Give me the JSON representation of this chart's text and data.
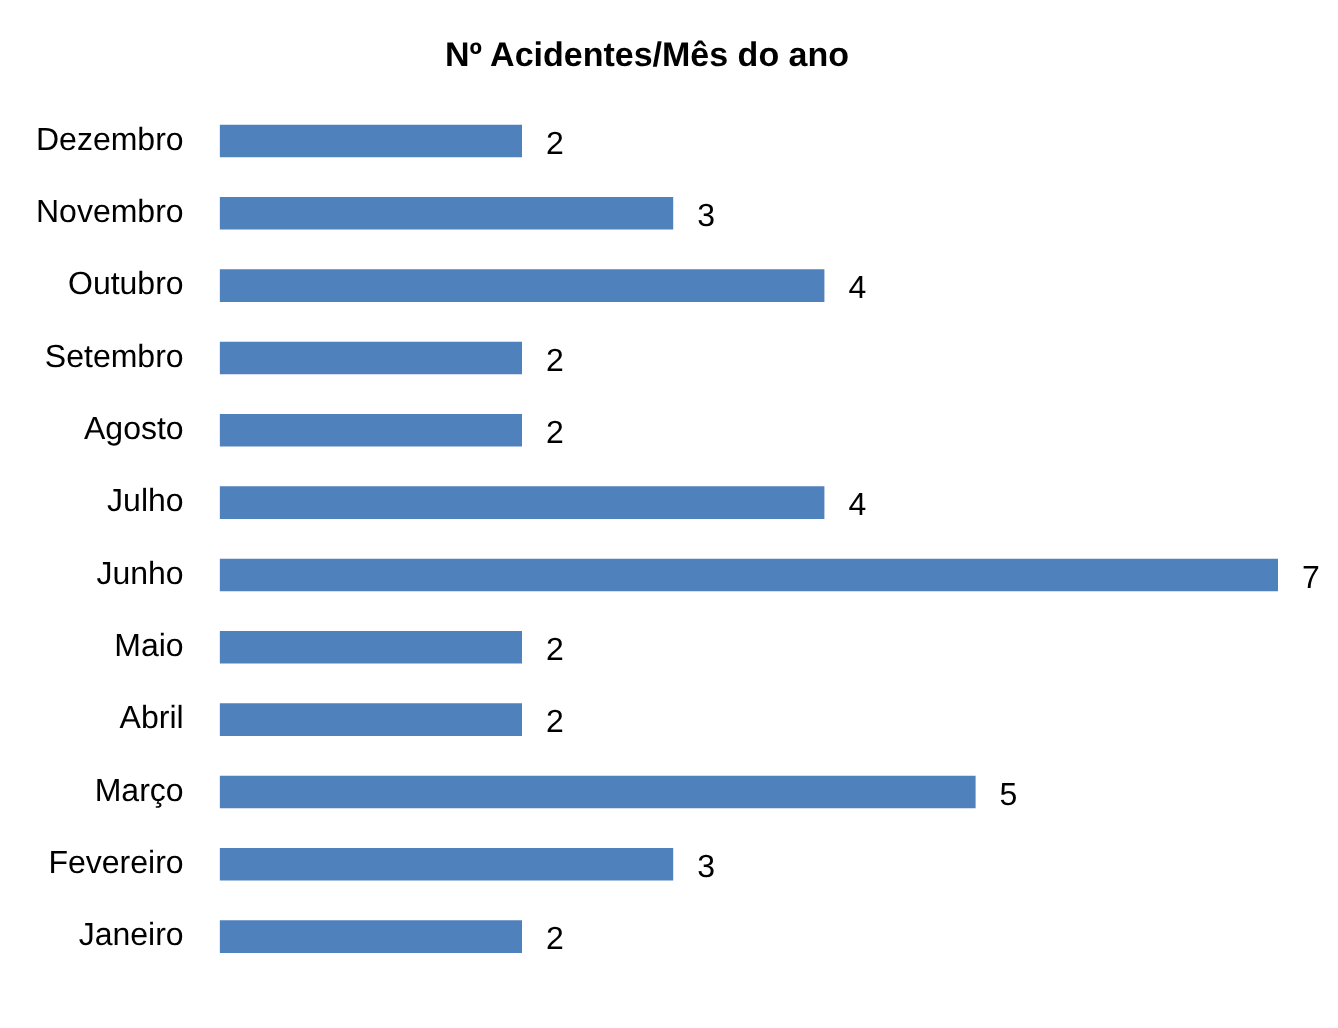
{
  "chart_data": {
    "type": "bar",
    "orientation": "horizontal",
    "title": "Nº Acidentes/Mês do ano",
    "categories": [
      "Dezembro",
      "Novembro",
      "Outubro",
      "Setembro",
      "Agosto",
      "Julho",
      "Junho",
      "Maio",
      "Abril",
      "Março",
      "Fevereiro",
      "Janeiro"
    ],
    "values": [
      2,
      3,
      4,
      2,
      2,
      4,
      7,
      2,
      2,
      5,
      3,
      2
    ],
    "color": "#4f81bd",
    "data_labels": true,
    "grid": false,
    "legend": false
  }
}
